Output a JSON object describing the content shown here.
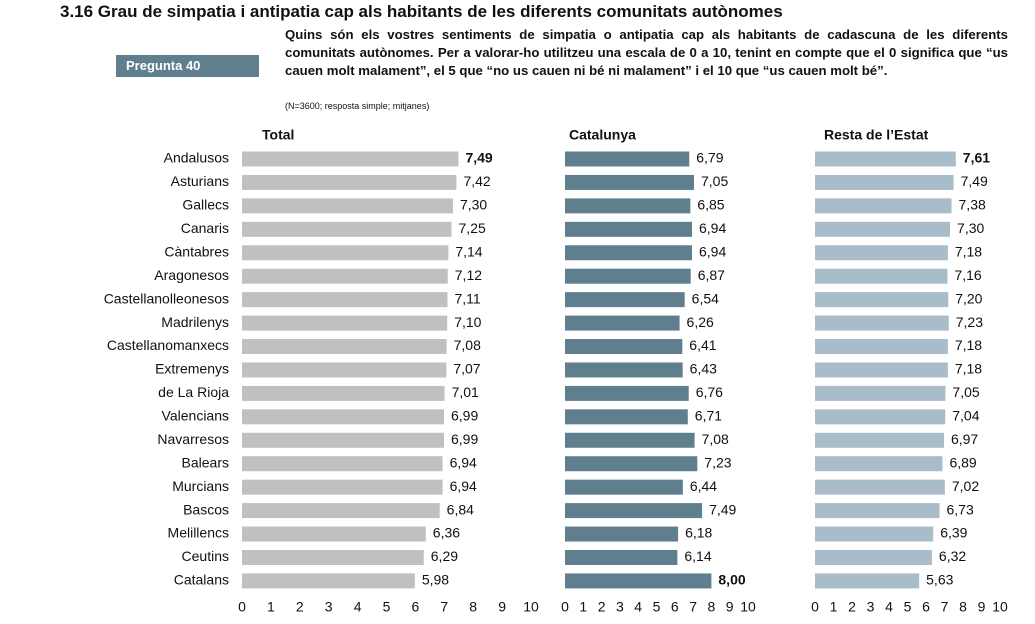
{
  "chart_data": {
    "type": "bar",
    "orientation": "horizontal",
    "title": "3.16 Grau de simpatia i antipatia cap als habitants de les diferents comunitats autònomes",
    "question_number": "Pregunta 40",
    "subtitle": "Quins són els vostres sentiments de simpatia o antipatia cap als habitants de cadascuna de les diferents comunitats autònomes. Per a valorar-ho utilitzeu una escala de 0 a 10, tenint en compte que el 0 significa que “us cauen molt malament”, el 5 que “no us cauen ni bé ni malament” i el 10 que “us cauen molt bé”.",
    "note": "(N=3600; resposta simple; mitjanes)",
    "categories": [
      "Andalusos",
      "Asturians",
      "Gallecs",
      "Canaris",
      "Càntabres",
      "Aragonesos",
      "Castellanolleonesos",
      "Madrilenys",
      "Castellanomanxecs",
      "Extremenys",
      "de La Rioja",
      "Valencians",
      "Navarresos",
      "Balears",
      "Murcians",
      "Bascos",
      "Melillencs",
      "Ceutins",
      "Catalans"
    ],
    "xlim": [
      0,
      10
    ],
    "xticks": [
      0,
      1,
      2,
      3,
      4,
      5,
      6,
      7,
      8,
      9,
      10
    ],
    "series": [
      {
        "name": "Total",
        "color": "#c0c0c0",
        "values": [
          7.49,
          7.42,
          7.3,
          7.25,
          7.14,
          7.12,
          7.11,
          7.1,
          7.08,
          7.07,
          7.01,
          6.99,
          6.99,
          6.94,
          6.94,
          6.84,
          6.36,
          6.29,
          5.98
        ],
        "value_labels": [
          "7,49",
          "7,42",
          "7,30",
          "7,25",
          "7,14",
          "7,12",
          "7,11",
          "7,10",
          "7,08",
          "7,07",
          "7,01",
          "6,99",
          "6,99",
          "6,94",
          "6,94",
          "6,84",
          "6,36",
          "6,29",
          "5,98"
        ]
      },
      {
        "name": "Catalunya",
        "color": "#5f7f8f",
        "values": [
          6.79,
          7.05,
          6.85,
          6.94,
          6.94,
          6.87,
          6.54,
          6.26,
          6.41,
          6.43,
          6.76,
          6.71,
          7.08,
          7.23,
          6.44,
          7.49,
          6.18,
          6.14,
          8.0
        ],
        "value_labels": [
          "6,79",
          "7,05",
          "6,85",
          "6,94",
          "6,94",
          "6,87",
          "6,54",
          "6,26",
          "6,41",
          "6,43",
          "6,76",
          "6,71",
          "7,08",
          "7,23",
          "6,44",
          "7,49",
          "6,18",
          "6,14",
          "8,00"
        ]
      },
      {
        "name": "Resta de l’Estat",
        "color": "#a9bcc9",
        "values": [
          7.61,
          7.49,
          7.38,
          7.3,
          7.18,
          7.16,
          7.2,
          7.23,
          7.18,
          7.18,
          7.05,
          7.04,
          6.97,
          6.89,
          7.02,
          6.73,
          6.39,
          6.32,
          5.63
        ],
        "value_labels": [
          "7,61",
          "7,49",
          "7,38",
          "7,30",
          "7,18",
          "7,16",
          "7,20",
          "7,23",
          "7,18",
          "7,18",
          "7,05",
          "7,04",
          "6,97",
          "6,89",
          "7,02",
          "6,73",
          "6,39",
          "6,32",
          "5,63"
        ]
      }
    ]
  }
}
